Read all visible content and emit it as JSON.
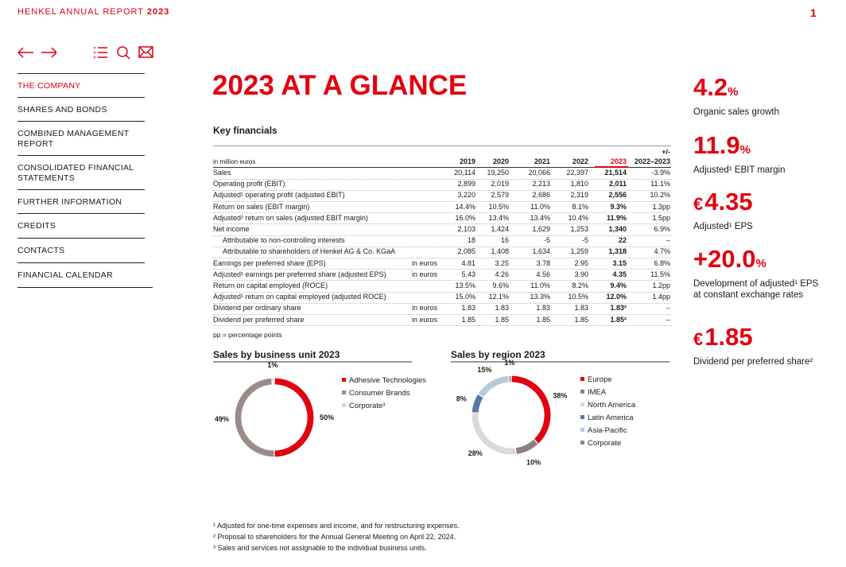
{
  "header": {
    "title": "HENKEL ANNUAL REPORT",
    "year": "2023",
    "page": "1"
  },
  "nav": [
    "THE COMPANY",
    "SHARES AND BONDS",
    "COMBINED MANAGEMENT REPORT",
    "CONSOLIDATED FINANCIAL STATEMENTS",
    "FURTHER INFORMATION",
    "CREDITS",
    "CONTACTS",
    "FINANCIAL CALENDAR"
  ],
  "page_title": "2023 AT A GLANCE",
  "table": {
    "title": "Key financials",
    "unit_note": "in million euros",
    "years": [
      "2019",
      "2020",
      "2021",
      "2022",
      "2023"
    ],
    "change_header": [
      "+/-",
      "2022–2023"
    ],
    "rows": [
      {
        "label": "Sales",
        "values": [
          "20,114",
          "19,250",
          "20,066",
          "22,397",
          "21,514"
        ],
        "change": "-3.9%"
      },
      {
        "label": "Operating profit (EBIT)",
        "values": [
          "2,899",
          "2,019",
          "2,213",
          "1,810",
          "2,011"
        ],
        "change": "11.1%"
      },
      {
        "label": "Adjusted¹ operating profit (adjusted EBIT)",
        "values": [
          "3,220",
          "2,579",
          "2,686",
          "2,319",
          "2,556"
        ],
        "change": "10.2%"
      },
      {
        "label": "Return on sales (EBIT margin)",
        "values": [
          "14.4%",
          "10.5%",
          "11.0%",
          "8.1%",
          "9.3%"
        ],
        "change": "1.3pp"
      },
      {
        "label": "Adjusted¹ return on sales (adjusted EBIT margin)",
        "values": [
          "16.0%",
          "13.4%",
          "13.4%",
          "10.4%",
          "11.9%"
        ],
        "change": "1.5pp"
      },
      {
        "label": "Net income",
        "values": [
          "2,103",
          "1,424",
          "1,629",
          "1,253",
          "1,340"
        ],
        "change": "6.9%"
      },
      {
        "label": "Attributable to non-controlling interests",
        "indent": true,
        "values": [
          "18",
          "16",
          "-5",
          "-5",
          "22"
        ],
        "change": "–"
      },
      {
        "label": "Attributable to shareholders of Henkel AG & Co. KGaA",
        "indent": true,
        "values": [
          "2,085",
          "1,408",
          "1,634",
          "1,259",
          "1,318"
        ],
        "change": "4.7%"
      },
      {
        "label": "Earnings per preferred share (EPS)",
        "unit": "in euros",
        "values": [
          "4.81",
          "3.25",
          "3.78",
          "2.95",
          "3.15"
        ],
        "change": "6.8%"
      },
      {
        "label": "Adjusted¹ earnings per preferred share (adjusted EPS)",
        "unit": "in euros",
        "values": [
          "5.43",
          "4.26",
          "4.56",
          "3.90",
          "4.35"
        ],
        "change": "11.5%"
      },
      {
        "label": "Return on capital employed (ROCE)",
        "values": [
          "13.5%",
          "9.6%",
          "11.0%",
          "8.2%",
          "9.4%"
        ],
        "change": "1.2pp"
      },
      {
        "label": "Adjusted¹ return on capital employed (adjusted ROCE)",
        "values": [
          "15.0%",
          "12.1%",
          "13.3%",
          "10.5%",
          "12.0%"
        ],
        "change": "1.4pp"
      },
      {
        "label": "Dividend per ordinary share",
        "unit": "in euros",
        "values": [
          "1.83",
          "1.83",
          "1.83",
          "1.83",
          "1.83²"
        ],
        "change": "–"
      },
      {
        "label": "Dividend per preferred share",
        "unit": "in euros",
        "values": [
          "1.85",
          "1.85",
          "1.85",
          "1.85",
          "1.85²"
        ],
        "change": "–"
      }
    ],
    "note": "pp = percentage points"
  },
  "chart_data": [
    {
      "type": "donut",
      "title": "Sales by business unit 2023",
      "categories": [
        "Adhesive Technologies",
        "Consumer Brands",
        "Corporate³"
      ],
      "values": [
        50,
        49,
        1
      ],
      "value_labels": [
        "50%",
        "49%",
        "1%"
      ],
      "colors": [
        "#e1000f",
        "#9b8b8b",
        "#dcd6d6"
      ]
    },
    {
      "type": "donut",
      "title": "Sales by region 2023",
      "categories": [
        "Europe",
        "IMEA",
        "North America",
        "Latin America",
        "Asia-Pacific",
        "Corporate"
      ],
      "values": [
        38,
        10,
        28,
        8,
        15,
        1
      ],
      "value_labels": [
        "38%",
        "10%",
        "28%",
        "8%",
        "15%",
        "1%"
      ],
      "colors": [
        "#e1000f",
        "#8f8080",
        "#ddd8d8",
        "#5b78a6",
        "#b9cadb",
        "#8c8c8c"
      ]
    }
  ],
  "kpis": [
    {
      "value": "4.2",
      "unit": "%",
      "label": "Organic sales growth"
    },
    {
      "value": "11.9",
      "unit": "%",
      "label": "Adjusted¹ EBIT margin"
    },
    {
      "currency": "€",
      "value": "4.35",
      "label": "Adjusted¹ EPS"
    },
    {
      "value": "+20.0",
      "unit": "%",
      "label": "Development of adjusted¹ EPS at constant exchange rates"
    },
    {
      "currency": "€",
      "value": "1.85",
      "label": "Dividend per preferred share²"
    }
  ],
  "footnotes": [
    "¹ Adjusted for one-time expenses and income, and for restructuring expenses.",
    "² Proposal to shareholders for the Annual General Meeting on April 22, 2024.",
    "³ Sales and services not assignable to the individual business units."
  ]
}
